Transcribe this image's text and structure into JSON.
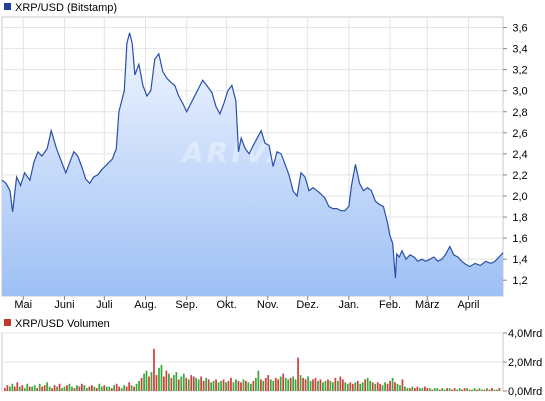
{
  "chart_data": [
    {
      "type": "area",
      "legend": "XRP/USD (Bitstamp)",
      "legend_color": "#1f3f99",
      "line_color": "#2a50a8",
      "fill_top_color": "#f2f6ff",
      "fill_bottom_color": "#9ec0f5",
      "watermark": "ARIVA",
      "ylim": [
        1.05,
        3.7
      ],
      "y_ticks": [
        1.2,
        1.4,
        1.6,
        1.8,
        2.0,
        2.2,
        2.4,
        2.6,
        2.8,
        3.0,
        3.2,
        3.4,
        3.6
      ],
      "y_tick_labels": [
        "1,2",
        "1,4",
        "1,6",
        "1,8",
        "2,0",
        "2,2",
        "2,4",
        "2,6",
        "2,8",
        "3,0",
        "3,2",
        "3,4",
        "3,6"
      ],
      "x_range": [
        "2025-04-15",
        "2026-04-27"
      ],
      "x_ticks": [
        "2025-05-01",
        "2025-06-01",
        "2025-07-01",
        "2025-08-01",
        "2025-09-01",
        "2025-10-01",
        "2025-11-01",
        "2025-12-01",
        "2026-01-01",
        "2026-02-01",
        "2026-03-01",
        "2026-04-01"
      ],
      "x_tick_labels": [
        "Mai",
        "Juni",
        "Juli",
        "Aug.",
        "Sep.",
        "Okt.",
        "Nov.",
        "Dez.",
        "Jan.",
        "Feb.",
        "März",
        "April"
      ],
      "points": [
        [
          "2025-04-15",
          2.15
        ],
        [
          "2025-04-18",
          2.12
        ],
        [
          "2025-04-21",
          2.05
        ],
        [
          "2025-04-23",
          1.85
        ],
        [
          "2025-04-26",
          2.18
        ],
        [
          "2025-04-29",
          2.1
        ],
        [
          "2025-05-02",
          2.22
        ],
        [
          "2025-05-06",
          2.15
        ],
        [
          "2025-05-09",
          2.32
        ],
        [
          "2025-05-12",
          2.42
        ],
        [
          "2025-05-15",
          2.38
        ],
        [
          "2025-05-19",
          2.45
        ],
        [
          "2025-05-22",
          2.62
        ],
        [
          "2025-05-26",
          2.45
        ],
        [
          "2025-05-29",
          2.35
        ],
        [
          "2025-06-02",
          2.22
        ],
        [
          "2025-06-05",
          2.32
        ],
        [
          "2025-06-08",
          2.42
        ],
        [
          "2025-06-11",
          2.38
        ],
        [
          "2025-06-14",
          2.28
        ],
        [
          "2025-06-17",
          2.16
        ],
        [
          "2025-06-20",
          2.12
        ],
        [
          "2025-06-23",
          2.18
        ],
        [
          "2025-06-26",
          2.2
        ],
        [
          "2025-06-29",
          2.25
        ],
        [
          "2025-07-03",
          2.3
        ],
        [
          "2025-07-07",
          2.35
        ],
        [
          "2025-07-10",
          2.45
        ],
        [
          "2025-07-12",
          2.8
        ],
        [
          "2025-07-14",
          2.9
        ],
        [
          "2025-07-16",
          3.0
        ],
        [
          "2025-07-18",
          3.45
        ],
        [
          "2025-07-20",
          3.55
        ],
        [
          "2025-07-22",
          3.45
        ],
        [
          "2025-07-24",
          3.15
        ],
        [
          "2025-07-27",
          3.25
        ],
        [
          "2025-07-30",
          3.05
        ],
        [
          "2025-08-02",
          2.95
        ],
        [
          "2025-08-05",
          3.0
        ],
        [
          "2025-08-08",
          3.3
        ],
        [
          "2025-08-11",
          3.35
        ],
        [
          "2025-08-14",
          3.18
        ],
        [
          "2025-08-17",
          3.12
        ],
        [
          "2025-08-20",
          3.08
        ],
        [
          "2025-08-23",
          3.05
        ],
        [
          "2025-08-26",
          2.95
        ],
        [
          "2025-08-29",
          2.88
        ],
        [
          "2025-09-01",
          2.8
        ],
        [
          "2025-09-05",
          2.9
        ],
        [
          "2025-09-09",
          3.0
        ],
        [
          "2025-09-13",
          3.1
        ],
        [
          "2025-09-16",
          3.05
        ],
        [
          "2025-09-20",
          2.98
        ],
        [
          "2025-09-23",
          2.85
        ],
        [
          "2025-09-26",
          2.78
        ],
        [
          "2025-09-29",
          2.88
        ],
        [
          "2025-10-02",
          3.0
        ],
        [
          "2025-10-05",
          3.05
        ],
        [
          "2025-10-08",
          2.9
        ],
        [
          "2025-10-10",
          2.42
        ],
        [
          "2025-10-12",
          2.55
        ],
        [
          "2025-10-15",
          2.45
        ],
        [
          "2025-10-18",
          2.4
        ],
        [
          "2025-10-21",
          2.48
        ],
        [
          "2025-10-24",
          2.55
        ],
        [
          "2025-10-27",
          2.62
        ],
        [
          "2025-10-30",
          2.5
        ],
        [
          "2025-11-02",
          2.48
        ],
        [
          "2025-11-05",
          2.28
        ],
        [
          "2025-11-08",
          2.42
        ],
        [
          "2025-11-11",
          2.4
        ],
        [
          "2025-11-14",
          2.3
        ],
        [
          "2025-11-17",
          2.2
        ],
        [
          "2025-11-20",
          2.05
        ],
        [
          "2025-11-23",
          2.0
        ],
        [
          "2025-11-26",
          2.22
        ],
        [
          "2025-11-29",
          2.18
        ],
        [
          "2025-12-02",
          2.05
        ],
        [
          "2025-12-05",
          2.08
        ],
        [
          "2025-12-08",
          2.05
        ],
        [
          "2025-12-11",
          2.02
        ],
        [
          "2025-12-14",
          1.98
        ],
        [
          "2025-12-17",
          1.9
        ],
        [
          "2025-12-20",
          1.88
        ],
        [
          "2025-12-23",
          1.88
        ],
        [
          "2025-12-26",
          1.86
        ],
        [
          "2025-12-29",
          1.86
        ],
        [
          "2026-01-01",
          1.9
        ],
        [
          "2026-01-03",
          2.1
        ],
        [
          "2026-01-06",
          2.3
        ],
        [
          "2026-01-09",
          2.12
        ],
        [
          "2026-01-12",
          2.05
        ],
        [
          "2026-01-15",
          2.08
        ],
        [
          "2026-01-18",
          2.05
        ],
        [
          "2026-01-21",
          1.95
        ],
        [
          "2026-01-24",
          1.92
        ],
        [
          "2026-01-27",
          1.9
        ],
        [
          "2026-01-30",
          1.75
        ],
        [
          "2026-02-01",
          1.62
        ],
        [
          "2026-02-03",
          1.55
        ],
        [
          "2026-02-05",
          1.22
        ],
        [
          "2026-02-06",
          1.45
        ],
        [
          "2026-02-08",
          1.42
        ],
        [
          "2026-02-10",
          1.48
        ],
        [
          "2026-02-13",
          1.4
        ],
        [
          "2026-02-16",
          1.44
        ],
        [
          "2026-02-19",
          1.42
        ],
        [
          "2026-02-22",
          1.38
        ],
        [
          "2026-02-25",
          1.4
        ],
        [
          "2026-02-28",
          1.38
        ],
        [
          "2026-03-03",
          1.4
        ],
        [
          "2026-03-06",
          1.42
        ],
        [
          "2026-03-09",
          1.38
        ],
        [
          "2026-03-12",
          1.4
        ],
        [
          "2026-03-15",
          1.45
        ],
        [
          "2026-03-18",
          1.52
        ],
        [
          "2026-03-21",
          1.44
        ],
        [
          "2026-03-24",
          1.42
        ],
        [
          "2026-03-27",
          1.38
        ],
        [
          "2026-03-30",
          1.35
        ],
        [
          "2026-04-02",
          1.33
        ],
        [
          "2026-04-06",
          1.36
        ],
        [
          "2026-04-10",
          1.34
        ],
        [
          "2026-04-14",
          1.38
        ],
        [
          "2026-04-18",
          1.36
        ],
        [
          "2026-04-21",
          1.38
        ],
        [
          "2026-04-24",
          1.42
        ],
        [
          "2026-04-27",
          1.46
        ]
      ]
    },
    {
      "type": "bar",
      "legend": "XRP/USD Volumen",
      "legend_color": "#c0392b",
      "ylim": [
        0,
        4.0
      ],
      "y_ticks": [
        0,
        2.0,
        4.0
      ],
      "y_tick_labels": [
        "0,0Mrd",
        "2,0Mrd",
        "4,0Mrd"
      ],
      "up_color": "#3aa83a",
      "down_color": "#d04040",
      "values": [
        0.2,
        0.4,
        0.3,
        0.5,
        0.3,
        0.6,
        0.3,
        0.4,
        0.2,
        0.5,
        0.3,
        0.3,
        0.4,
        0.2,
        0.5,
        0.3,
        0.4,
        0.6,
        0.3,
        0.2,
        0.4,
        0.3,
        0.5,
        0.2,
        0.3,
        0.4,
        0.5,
        0.3,
        0.2,
        0.4,
        0.3,
        0.5,
        0.4,
        0.2,
        0.3,
        0.4,
        0.3,
        0.2,
        0.5,
        0.3,
        0.4,
        0.3,
        0.3,
        0.2,
        0.4,
        0.5,
        0.3,
        0.2,
        0.4,
        0.3,
        0.6,
        0.4,
        0.3,
        0.5,
        0.7,
        0.9,
        1.2,
        1.4,
        1.0,
        1.3,
        2.9,
        1.1,
        1.6,
        1.8,
        1.0,
        1.4,
        1.2,
        0.9,
        1.1,
        1.3,
        0.8,
        1.0,
        1.2,
        0.9,
        0.8,
        1.1,
        1.0,
        0.9,
        0.8,
        1.0,
        0.7,
        0.9,
        0.8,
        0.6,
        0.7,
        0.8,
        0.6,
        0.7,
        0.8,
        0.6,
        0.7,
        0.9,
        0.6,
        0.8,
        0.7,
        0.6,
        0.8,
        0.7,
        0.6,
        0.5,
        0.7,
        0.9,
        1.4,
        0.8,
        0.7,
        0.9,
        1.1,
        0.8,
        0.7,
        0.9,
        0.8,
        1.0,
        1.2,
        0.9,
        0.8,
        0.9,
        1.0,
        0.8,
        2.3,
        1.1,
        0.9,
        0.8,
        1.0,
        0.7,
        0.8,
        0.9,
        0.7,
        0.8,
        0.6,
        0.7,
        0.8,
        0.7,
        0.6,
        0.9,
        0.7,
        1.0,
        0.8,
        0.6,
        0.5,
        0.6,
        0.5,
        0.6,
        0.7,
        0.5,
        0.6,
        0.8,
        0.9,
        0.7,
        0.6,
        0.5,
        0.6,
        0.5,
        0.4,
        0.6,
        0.5,
        0.7,
        0.9,
        0.6,
        0.5,
        0.4,
        0.8,
        0.3,
        0.2,
        0.2,
        0.3,
        0.2,
        0.3,
        0.2,
        0.2,
        0.3,
        0.2,
        0.2,
        0.1,
        0.2,
        0.2,
        0.1,
        0.2,
        0.1,
        0.2,
        0.2,
        0.1,
        0.2,
        0.1,
        0.2,
        0.1,
        0.2,
        0.2,
        0.1,
        0.1,
        0.2,
        0.1,
        0.2,
        0.1,
        0.1,
        0.2,
        0.1,
        0.2,
        0.1,
        0.1,
        0.2
      ]
    }
  ]
}
